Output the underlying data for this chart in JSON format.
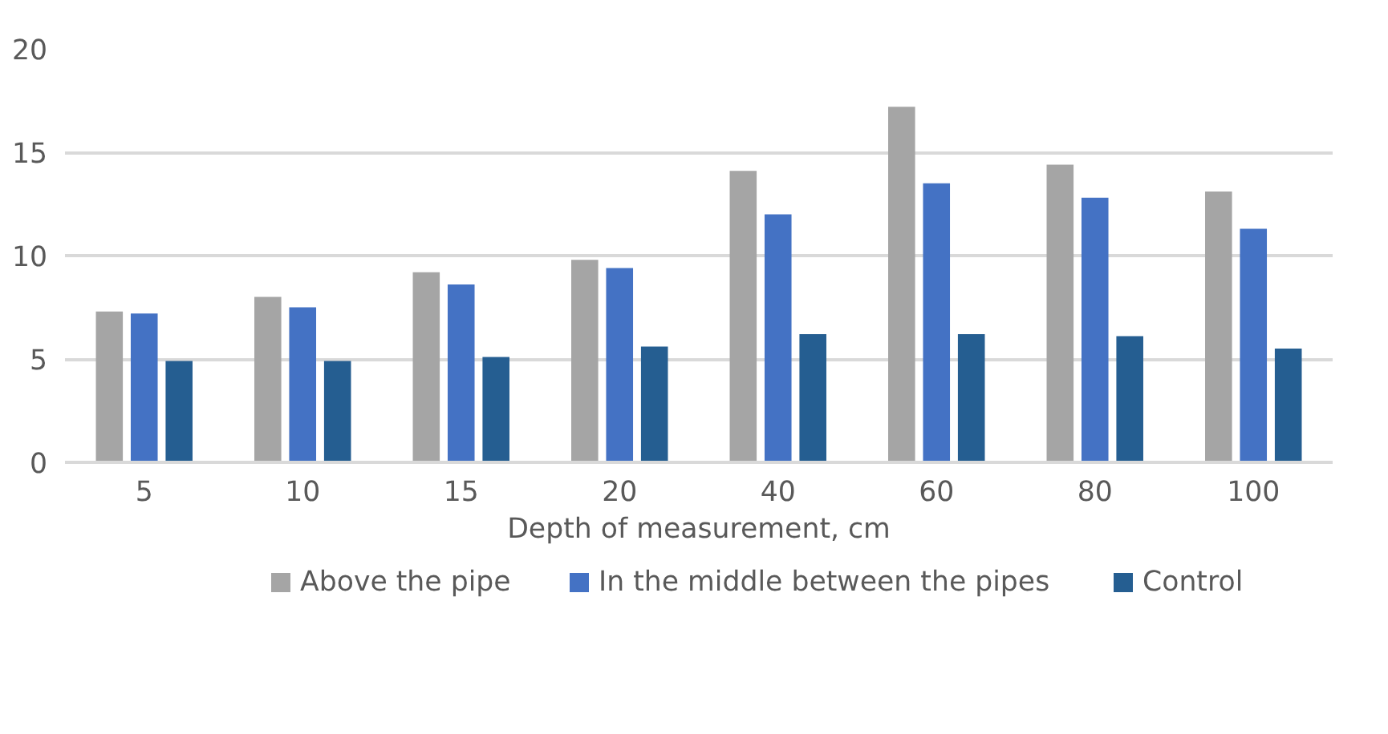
{
  "chart_data": {
    "type": "bar",
    "xlabel": "Depth of measurement, cm",
    "categories": [
      "5",
      "10",
      "15",
      "20",
      "40",
      "60",
      "80",
      "100"
    ],
    "series": [
      {
        "name": "Above the pipe",
        "color": "#a5a5a5",
        "values": [
          7.3,
          8.0,
          9.2,
          9.8,
          14.1,
          17.2,
          14.4,
          13.1
        ]
      },
      {
        "name": "In the middle between the pipes",
        "color": "#4472c4",
        "values": [
          7.2,
          7.5,
          8.6,
          9.4,
          12.0,
          13.5,
          12.8,
          11.3
        ]
      },
      {
        "name": "Control",
        "color": "#255e91",
        "values": [
          4.9,
          4.9,
          5.1,
          5.6,
          6.2,
          6.2,
          6.1,
          5.5
        ]
      }
    ],
    "ylim": [
      0,
      20
    ],
    "yticks": [
      0,
      5,
      10,
      15,
      20
    ],
    "grid": "y",
    "legend": "bottom"
  }
}
